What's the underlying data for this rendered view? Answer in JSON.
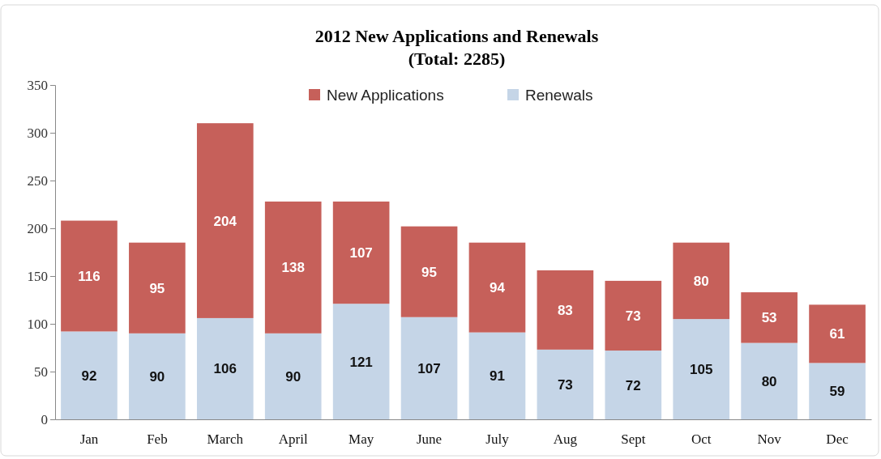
{
  "chart_data": {
    "type": "bar",
    "title": "2012 New Applications and Renewals",
    "subtitle": "(Total: 2285)",
    "categories": [
      "Jan",
      "Feb",
      "March",
      "April",
      "May",
      "June",
      "July",
      "Aug",
      "Sept",
      "Oct",
      "Nov",
      "Dec"
    ],
    "stacked": true,
    "series": [
      {
        "name": "Renewals",
        "color": "#c5d5e7",
        "values": [
          92,
          90,
          106,
          90,
          121,
          107,
          91,
          73,
          72,
          105,
          80,
          59
        ]
      },
      {
        "name": "New Applications",
        "color": "#c6605a",
        "values": [
          116,
          95,
          204,
          138,
          107,
          95,
          94,
          83,
          73,
          80,
          53,
          61
        ]
      }
    ],
    "ylim": [
      0,
      350
    ],
    "yticks": [
      0,
      50,
      100,
      150,
      200,
      250,
      300,
      350
    ],
    "data_labels": true,
    "legend": "top",
    "grid": false
  }
}
